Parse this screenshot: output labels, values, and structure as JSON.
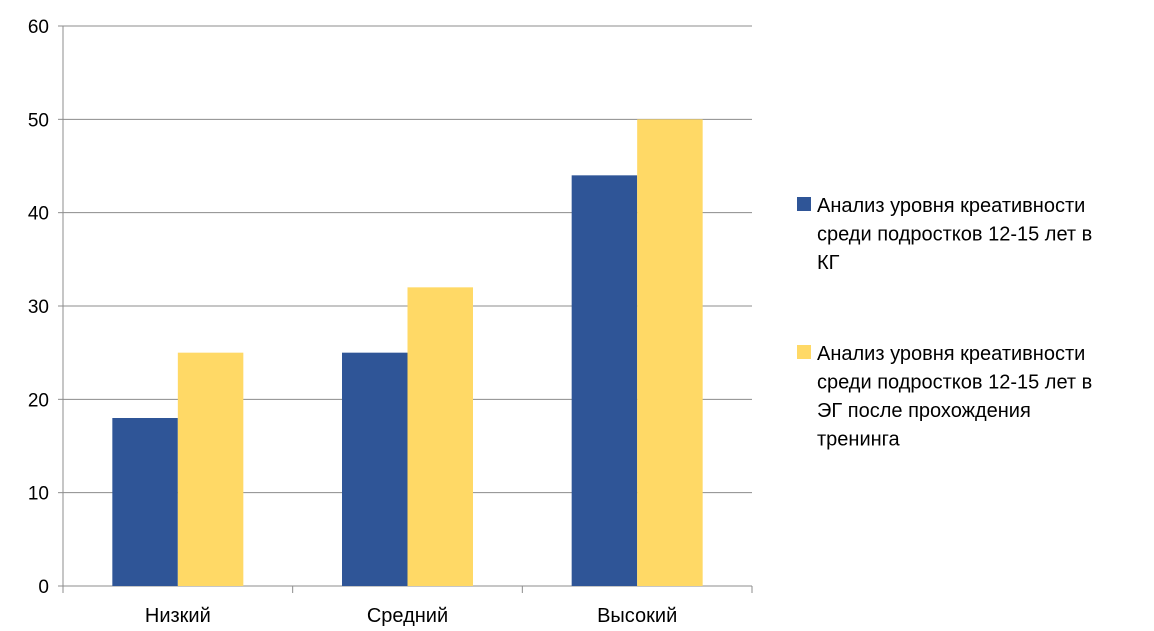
{
  "chart_data": {
    "type": "bar",
    "categories": [
      "Низкий",
      "Средний",
      "Высокий"
    ],
    "series": [
      {
        "name": "Анализ уровня креативности среди подростков 12-15 лет в КГ",
        "legend_lines": [
          "Анализ уровня креативности",
          "среди подростков 12-15 лет в",
          "КГ"
        ],
        "values": [
          18,
          25,
          44
        ],
        "color": "#2F5597"
      },
      {
        "name": "Анализ уровня креативности среди подростков 12-15 лет в ЭГ после прохождения тренинга",
        "legend_lines": [
          "Анализ уровня креативности",
          "среди подростков 12-15 лет в",
          "ЭГ после прохождения",
          "тренинга"
        ],
        "values": [
          25,
          32,
          50
        ],
        "color": "#FFD966"
      }
    ],
    "ylim": [
      0,
      60
    ],
    "yticks": [
      0,
      10,
      20,
      30,
      40,
      50,
      60
    ],
    "grid": true,
    "legend_position": "right",
    "gridline_color": "#8C8C8C",
    "axis_color": "#8C8C8C"
  }
}
